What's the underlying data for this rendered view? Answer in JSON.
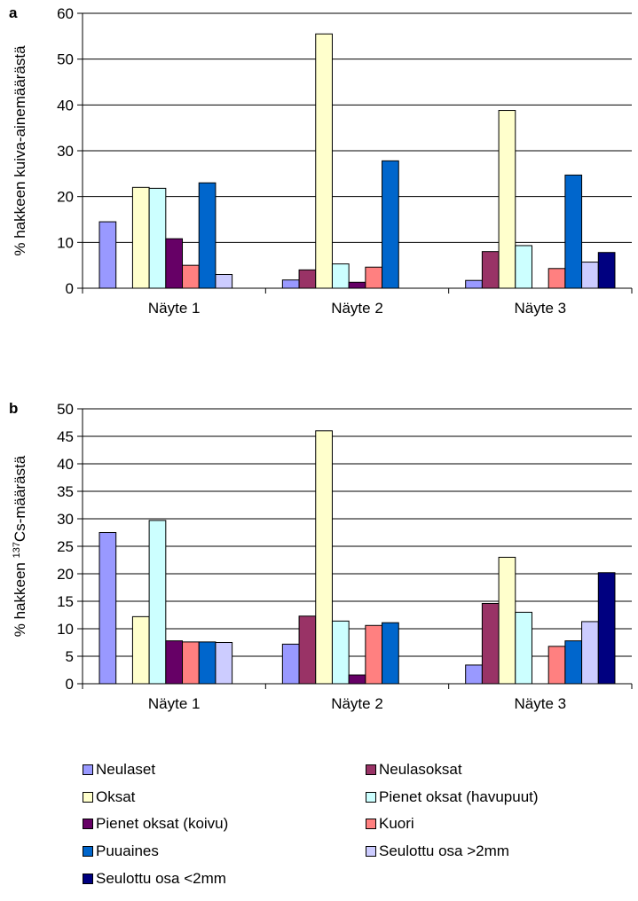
{
  "series_styles": [
    {
      "name": "Neulaset",
      "color": "#9999ff"
    },
    {
      "name": "Neulasoksat",
      "color": "#993366"
    },
    {
      "name": "Oksat",
      "color": "#ffffcc"
    },
    {
      "name": "Pienet oksat (havupuut)",
      "color": "#ccffff"
    },
    {
      "name": "Pienet oksat (koivu)",
      "color": "#660066"
    },
    {
      "name": "Kuori",
      "color": "#ff8080"
    },
    {
      "name": "Puuaines",
      "color": "#0066cc"
    },
    {
      "name": "Seulottu osa >2mm",
      "color": "#ccccff"
    },
    {
      "name": "Seulottu osa <2mm",
      "color": "#000080"
    }
  ],
  "chart_data": [
    {
      "type": "bar",
      "panel_label": "a",
      "ylabel": "% hakkeen kuiva-ainemäärästä",
      "ylim": [
        0,
        60
      ],
      "yticks": [
        0,
        10,
        20,
        30,
        40,
        50,
        60
      ],
      "categories": [
        "Näyte 1",
        "Näyte 2",
        "Näyte 3"
      ],
      "grid": true,
      "series": [
        {
          "name": "Neulaset",
          "values": [
            14.5,
            1.8,
            1.7
          ]
        },
        {
          "name": "Neulasoksat",
          "values": [
            null,
            4.0,
            8.0
          ]
        },
        {
          "name": "Oksat",
          "values": [
            22.0,
            55.5,
            38.8
          ]
        },
        {
          "name": "Pienet oksat (havupuut)",
          "values": [
            21.8,
            5.3,
            9.3
          ]
        },
        {
          "name": "Pienet oksat (koivu)",
          "values": [
            10.8,
            1.3,
            null
          ]
        },
        {
          "name": "Kuori",
          "values": [
            5.0,
            4.6,
            4.3
          ]
        },
        {
          "name": "Puuaines",
          "values": [
            23.0,
            27.8,
            24.7
          ]
        },
        {
          "name": "Seulottu osa >2mm",
          "values": [
            3.0,
            null,
            5.7
          ]
        },
        {
          "name": "Seulottu osa <2mm",
          "values": [
            null,
            null,
            7.8
          ]
        }
      ]
    },
    {
      "type": "bar",
      "panel_label": "b",
      "ylabel_prefix": "% hakkeen ",
      "ylabel_sup": "137",
      "ylabel_suffix": "Cs-määrästä",
      "ylim": [
        0,
        50
      ],
      "yticks": [
        0,
        5,
        10,
        15,
        20,
        25,
        30,
        35,
        40,
        45,
        50
      ],
      "categories": [
        "Näyte 1",
        "Näyte 2",
        "Näyte 3"
      ],
      "grid": true,
      "series": [
        {
          "name": "Neulaset",
          "values": [
            27.5,
            7.2,
            3.4
          ]
        },
        {
          "name": "Neulasoksat",
          "values": [
            null,
            12.3,
            14.6
          ]
        },
        {
          "name": "Oksat",
          "values": [
            12.2,
            46.0,
            23.0
          ]
        },
        {
          "name": "Pienet oksat (havupuut)",
          "values": [
            29.7,
            11.4,
            13.0
          ]
        },
        {
          "name": "Pienet oksat (koivu)",
          "values": [
            7.8,
            1.6,
            null
          ]
        },
        {
          "name": "Kuori",
          "values": [
            7.6,
            10.6,
            6.8
          ]
        },
        {
          "name": "Puuaines",
          "values": [
            7.6,
            11.1,
            7.8
          ]
        },
        {
          "name": "Seulottu osa >2mm",
          "values": [
            7.5,
            null,
            11.3
          ]
        },
        {
          "name": "Seulottu osa <2mm",
          "values": [
            null,
            null,
            20.2
          ]
        }
      ]
    }
  ],
  "legend": {
    "position": "bottom",
    "items": [
      "Neulaset",
      "Neulasoksat",
      "Oksat",
      "Pienet oksat (havupuut)",
      "Pienet oksat (koivu)",
      "Kuori",
      "Puuaines",
      "Seulottu osa >2mm",
      "Seulottu osa <2mm"
    ]
  }
}
